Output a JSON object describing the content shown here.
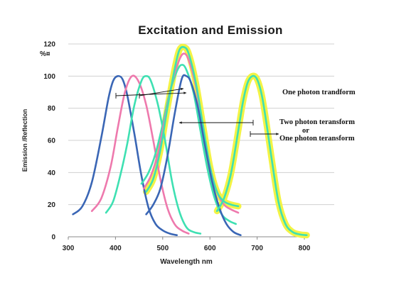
{
  "chart_data": {
    "type": "line",
    "title": "Excitation and Emission",
    "xlabel": "Wavelength nm",
    "ylabel": "Emission /Reflection",
    "y_unit_label": "%¤",
    "xlim": [
      300,
      800
    ],
    "ylim": [
      0,
      120
    ],
    "x_ticks": [
      "300",
      "400",
      "500",
      "600",
      "700",
      "800"
    ],
    "y_ticks": [
      "0",
      "20",
      "40",
      "60",
      "80",
      "100",
      "120"
    ],
    "grid": "horizontal",
    "annotations": [
      "One photon trandform",
      "Two photon teransform",
      "or",
      "One photon teransform"
    ],
    "series": [
      {
        "color": "#3a66b5",
        "highlight": null,
        "x": [
          310,
          330,
          350,
          370,
          385,
          395,
          405,
          415,
          425,
          440,
          455,
          470,
          485,
          500,
          515,
          530
        ],
        "y": [
          14,
          19,
          34,
          62,
          86,
          97,
          100,
          98,
          88,
          64,
          38,
          18,
          8,
          4,
          2,
          1
        ]
      },
      {
        "color": "#ee79ad",
        "highlight": null,
        "x": [
          350,
          370,
          390,
          405,
          420,
          435,
          450,
          465,
          480,
          495,
          510,
          525,
          540,
          555
        ],
        "y": [
          16,
          24,
          44,
          68,
          90,
          100,
          96,
          82,
          60,
          36,
          18,
          8,
          4,
          2
        ]
      },
      {
        "color": "#3ee0b2",
        "highlight": null,
        "x": [
          380,
          395,
          410,
          425,
          440,
          455,
          465,
          475,
          490,
          505,
          520,
          535,
          550,
          565,
          580
        ],
        "y": [
          15,
          22,
          38,
          58,
          82,
          97,
          100,
          97,
          82,
          60,
          34,
          16,
          6,
          3,
          2
        ]
      },
      {
        "color": "#3ee0b2",
        "highlight": null,
        "x": [
          455,
          470,
          485,
          500,
          515,
          530,
          540,
          550,
          565,
          580,
          595,
          610,
          625,
          640,
          655
        ],
        "y": [
          33,
          40,
          52,
          70,
          90,
          103,
          107,
          104,
          90,
          66,
          42,
          24,
          14,
          10,
          8
        ]
      },
      {
        "color": "#ee79ad",
        "highlight": null,
        "x": [
          460,
          475,
          490,
          505,
          520,
          535,
          545,
          555,
          570,
          585,
          600,
          615,
          630,
          645,
          660
        ],
        "y": [
          30,
          38,
          52,
          74,
          96,
          110,
          114,
          110,
          94,
          68,
          44,
          28,
          20,
          17,
          15
        ]
      },
      {
        "color": "#3ee0b2",
        "highlight": "#f3f345",
        "x": [
          465,
          480,
          495,
          510,
          525,
          535,
          545,
          555,
          570,
          585,
          600,
          615,
          630,
          645,
          660
        ],
        "y": [
          28,
          36,
          54,
          80,
          104,
          116,
          118,
          114,
          96,
          70,
          44,
          28,
          22,
          20,
          19
        ]
      },
      {
        "color": "#3a66b5",
        "highlight": null,
        "x": [
          465,
          480,
          495,
          510,
          525,
          540,
          550,
          560,
          575,
          590,
          605,
          620,
          635,
          650,
          665
        ],
        "y": [
          14,
          20,
          30,
          50,
          76,
          98,
          100,
          96,
          80,
          56,
          34,
          18,
          8,
          3,
          1
        ]
      },
      {
        "color": "#3ee0b2",
        "highlight": "#f3f345",
        "x": [
          615,
          630,
          645,
          660,
          670,
          680,
          690,
          700,
          710,
          720,
          730,
          745,
          760,
          775,
          790,
          805
        ],
        "y": [
          16,
          24,
          40,
          66,
          84,
          96,
          100,
          98,
          88,
          70,
          50,
          22,
          8,
          3,
          1.5,
          1
        ]
      }
    ]
  }
}
